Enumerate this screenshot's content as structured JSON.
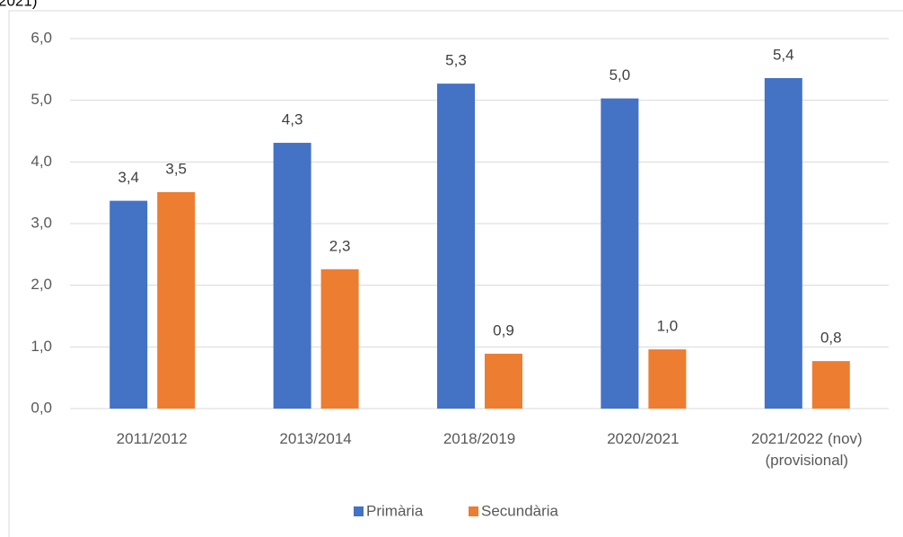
{
  "chart_data": {
    "type": "bar",
    "title": "2021)",
    "categories": [
      "2011/2012",
      "2013/2014",
      "2018/2019",
      "2020/2021",
      "2021/2022 (nov) (provisional)"
    ],
    "series": [
      {
        "name": "Primària",
        "color": "#4472c4",
        "values": [
          3.37,
          4.31,
          5.27,
          5.03,
          5.36
        ],
        "value_labels": [
          "3,4",
          "4,3",
          "5,3",
          "5,0",
          "5,4"
        ]
      },
      {
        "name": "Secundària",
        "color": "#ed7d31",
        "values": [
          3.51,
          2.26,
          0.89,
          0.96,
          0.77
        ],
        "value_labels": [
          "3,5",
          "2,3",
          "0,9",
          "1,0",
          "0,8"
        ]
      }
    ],
    "ylim": [
      0,
      6
    ],
    "yticks": [
      {
        "value": 0,
        "label": "0,0"
      },
      {
        "value": 1,
        "label": "1,0"
      },
      {
        "value": 2,
        "label": "2,0"
      },
      {
        "value": 3,
        "label": "3,0"
      },
      {
        "value": 4,
        "label": "4,0"
      },
      {
        "value": 5,
        "label": "5,0"
      },
      {
        "value": 6,
        "label": "6,0"
      }
    ],
    "grid": true,
    "legend": "bottom"
  }
}
